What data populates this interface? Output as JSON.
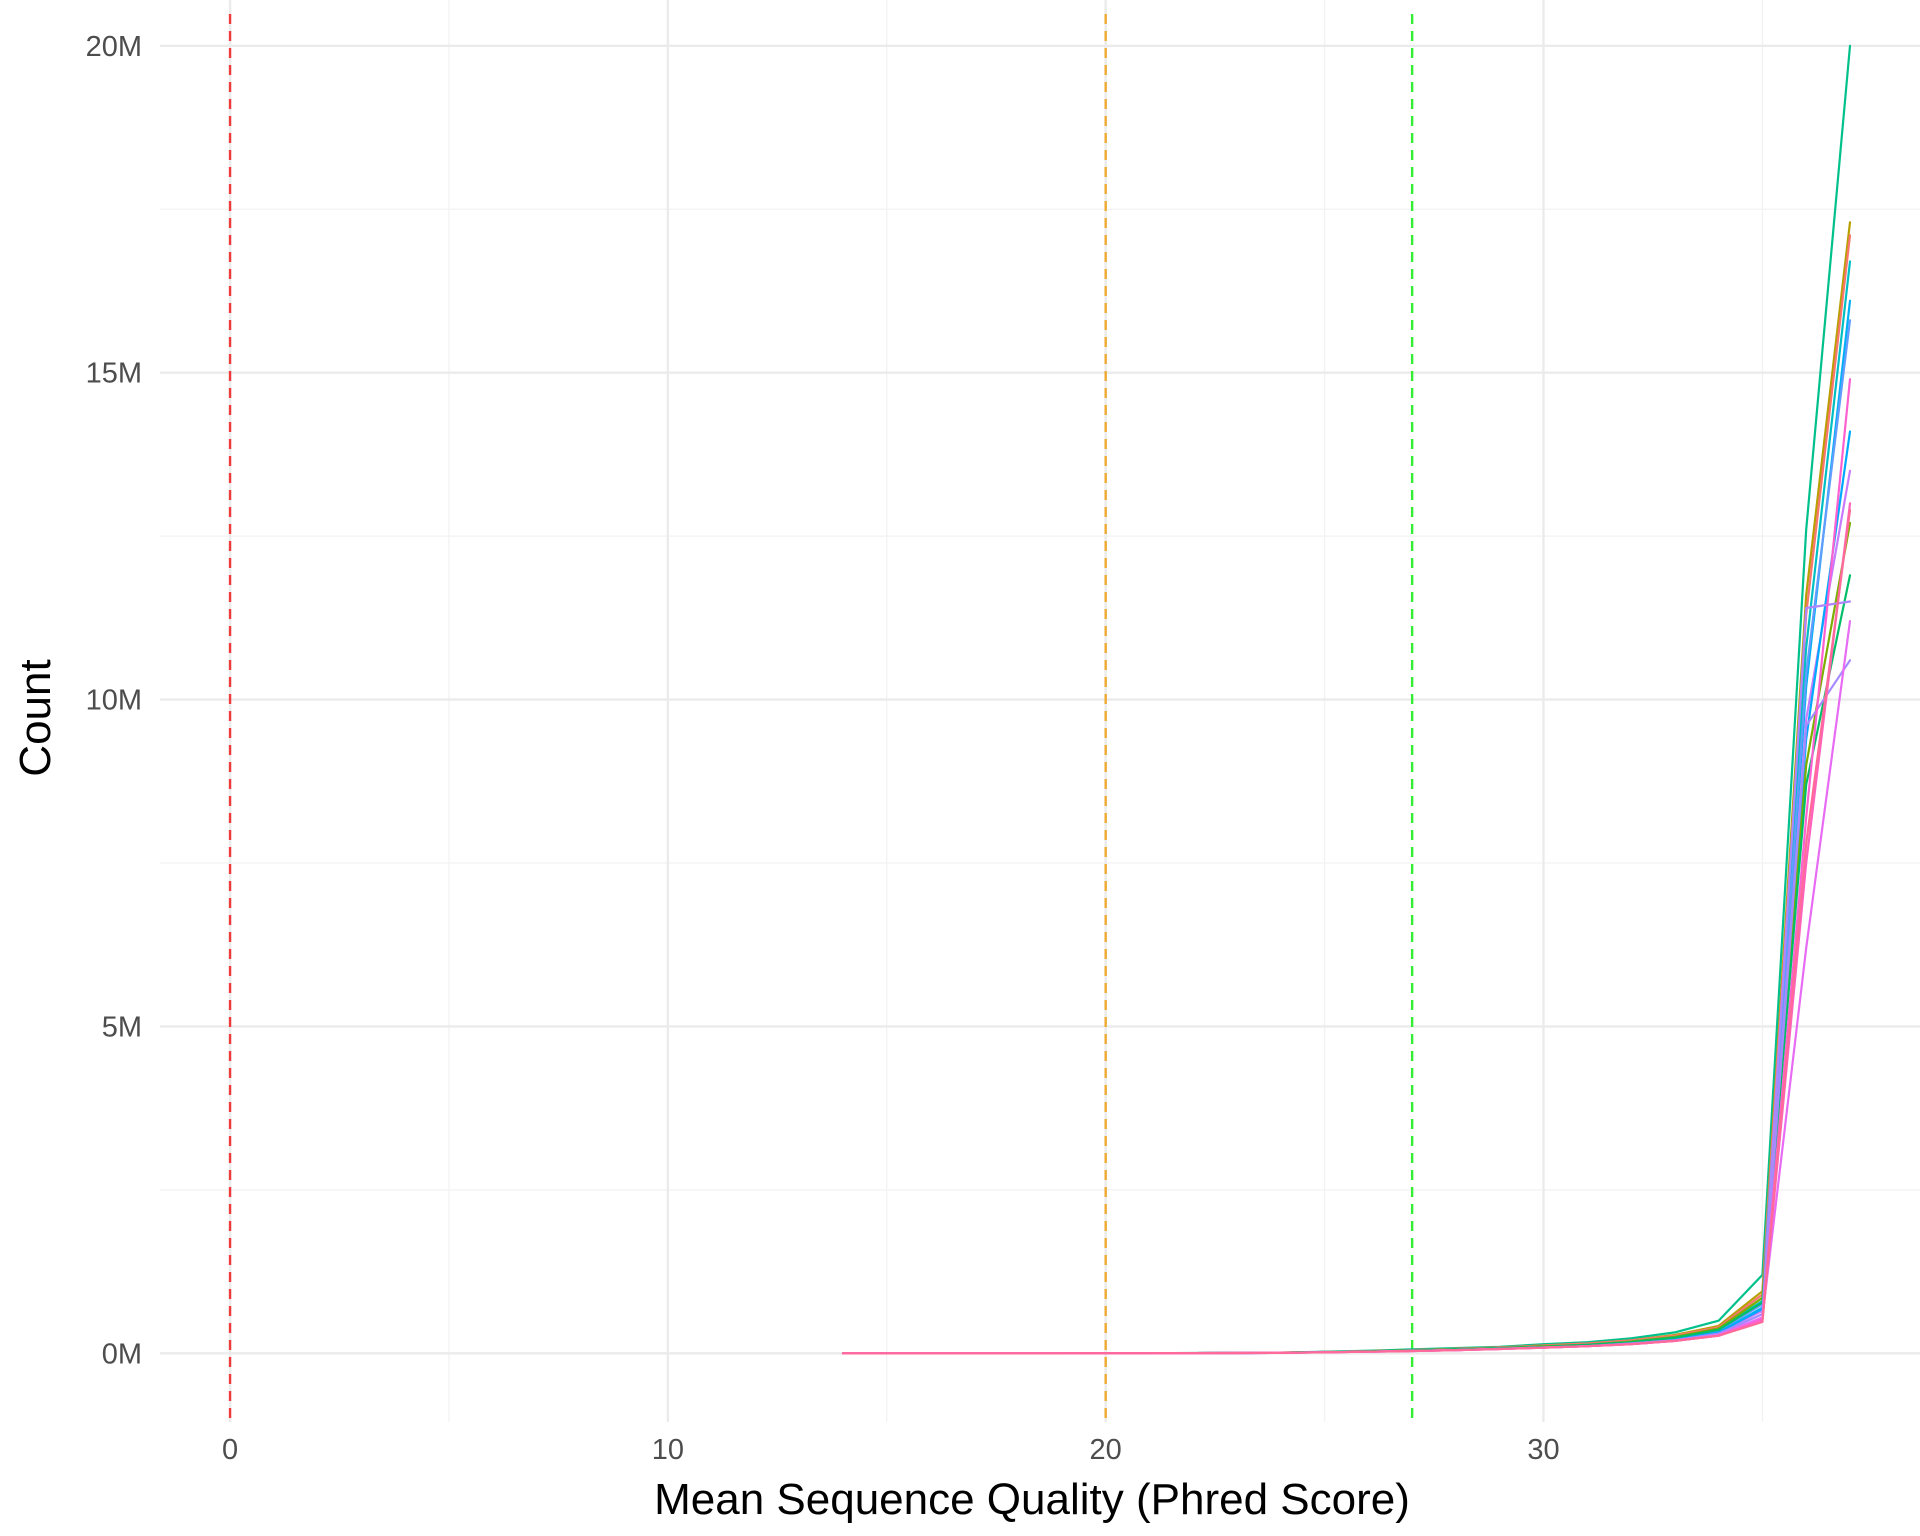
{
  "chart_data": {
    "type": "line",
    "title": "",
    "xlabel": "Mean Sequence Quality (Phred Score)",
    "ylabel": "Count",
    "xlim": [
      -1.6,
      38.6
    ],
    "ylim": [
      -1.05,
      20.7
    ],
    "x_ticks": [
      0,
      10,
      20,
      30
    ],
    "x_tick_labels": [
      "0",
      "10",
      "20",
      "30"
    ],
    "x_minor_ticks": [
      5,
      15,
      25,
      35
    ],
    "y_ticks": [
      0,
      5,
      10,
      15,
      20
    ],
    "y_tick_labels": [
      "0M",
      "5M",
      "10M",
      "15M",
      "20M"
    ],
    "y_minor_ticks": [
      2.5,
      7.5,
      12.5,
      17.5
    ],
    "y_unit": "M",
    "grid": true,
    "legend": "none",
    "reference_lines": [
      {
        "x": 0,
        "color": "#ee3b3b"
      },
      {
        "x": 20,
        "color": "#eeaa33"
      },
      {
        "x": 27,
        "color": "#33ee33"
      }
    ],
    "x": [
      14,
      15,
      16,
      17,
      18,
      19,
      20,
      21,
      22,
      23,
      24,
      25,
      26,
      27,
      28,
      29,
      30,
      31,
      32,
      33,
      34,
      35,
      36,
      37
    ],
    "series": [
      {
        "color": "#00b0f6",
        "values": [
          0,
          0,
          0,
          0,
          0,
          0,
          0.002,
          0.003,
          0.004,
          0.006,
          0.01,
          0.02,
          0.03,
          0.04,
          0.06,
          0.08,
          0.1,
          0.12,
          0.16,
          0.22,
          0.32,
          0.7,
          10.2,
          16.1
        ]
      },
      {
        "color": "#00c08b",
        "values": [
          0,
          0,
          0,
          0,
          0,
          0,
          0.002,
          0.003,
          0.005,
          0.007,
          0.012,
          0.025,
          0.04,
          0.06,
          0.08,
          0.1,
          0.14,
          0.17,
          0.23,
          0.32,
          0.5,
          1.2,
          12.6,
          20.0
        ]
      },
      {
        "color": "#b79f00",
        "values": [
          0,
          0,
          0,
          0,
          0,
          0,
          0.002,
          0.003,
          0.004,
          0.006,
          0.011,
          0.02,
          0.035,
          0.05,
          0.07,
          0.09,
          0.12,
          0.15,
          0.2,
          0.28,
          0.42,
          0.95,
          11.6,
          17.3
        ]
      },
      {
        "color": "#f8766d",
        "values": [
          0,
          0,
          0,
          0,
          0,
          0,
          0.002,
          0.003,
          0.004,
          0.006,
          0.011,
          0.02,
          0.033,
          0.05,
          0.07,
          0.09,
          0.12,
          0.15,
          0.2,
          0.27,
          0.4,
          0.9,
          11.3,
          17.1
        ]
      },
      {
        "color": "#00bfc4",
        "values": [
          0,
          0,
          0,
          0,
          0,
          0,
          0.002,
          0.003,
          0.004,
          0.006,
          0.01,
          0.02,
          0.03,
          0.045,
          0.06,
          0.08,
          0.11,
          0.13,
          0.18,
          0.25,
          0.37,
          0.8,
          10.8,
          16.7
        ]
      },
      {
        "color": "#619cff",
        "values": [
          0,
          0,
          0,
          0,
          0,
          0,
          0.002,
          0.003,
          0.004,
          0.006,
          0.01,
          0.02,
          0.03,
          0.045,
          0.06,
          0.08,
          0.1,
          0.13,
          0.17,
          0.24,
          0.35,
          0.75,
          10.4,
          15.8
        ]
      },
      {
        "color": "#c77cff",
        "values": [
          0,
          0,
          0,
          0,
          0,
          0,
          0.002,
          0.003,
          0.004,
          0.005,
          0.009,
          0.018,
          0.028,
          0.04,
          0.055,
          0.075,
          0.1,
          0.12,
          0.16,
          0.22,
          0.32,
          0.65,
          9.7,
          13.5
        ]
      },
      {
        "color": "#00a9ff",
        "values": [
          0,
          0,
          0,
          0,
          0,
          0,
          0.002,
          0.003,
          0.004,
          0.005,
          0.009,
          0.018,
          0.028,
          0.04,
          0.055,
          0.075,
          0.1,
          0.12,
          0.16,
          0.22,
          0.32,
          0.68,
          9.4,
          14.1
        ]
      },
      {
        "color": "#7cae00",
        "values": [
          0,
          0,
          0,
          0,
          0,
          0,
          0.002,
          0.003,
          0.004,
          0.006,
          0.01,
          0.02,
          0.03,
          0.045,
          0.06,
          0.08,
          0.11,
          0.13,
          0.18,
          0.25,
          0.38,
          0.85,
          9.0,
          12.7
        ]
      },
      {
        "color": "#00be67",
        "values": [
          0,
          0,
          0,
          0,
          0,
          0,
          0.002,
          0.003,
          0.004,
          0.006,
          0.01,
          0.02,
          0.03,
          0.045,
          0.06,
          0.08,
          0.1,
          0.13,
          0.17,
          0.24,
          0.36,
          0.78,
          8.7,
          11.9
        ]
      },
      {
        "color": "#ae87ff",
        "values": [
          0,
          0,
          0,
          0,
          0,
          0,
          0.002,
          0.003,
          0.004,
          0.005,
          0.009,
          0.017,
          0.026,
          0.038,
          0.05,
          0.07,
          0.09,
          0.11,
          0.15,
          0.2,
          0.3,
          0.6,
          11.4,
          11.5
        ]
      },
      {
        "color": "#a58aff",
        "values": [
          0,
          0,
          0,
          0,
          0,
          0,
          0.002,
          0.003,
          0.004,
          0.005,
          0.009,
          0.017,
          0.026,
          0.038,
          0.05,
          0.07,
          0.09,
          0.11,
          0.15,
          0.2,
          0.3,
          0.6,
          9.6,
          10.6
        ]
      },
      {
        "color": "#e76bf3",
        "values": [
          0,
          0,
          0,
          0,
          0,
          0,
          0.002,
          0.003,
          0.004,
          0.005,
          0.008,
          0.016,
          0.025,
          0.036,
          0.05,
          0.068,
          0.09,
          0.11,
          0.14,
          0.19,
          0.28,
          0.55,
          6.2,
          11.2
        ]
      },
      {
        "color": "#ff62bc",
        "values": [
          0,
          0,
          0,
          0,
          0,
          0,
          0.002,
          0.003,
          0.004,
          0.005,
          0.008,
          0.016,
          0.025,
          0.036,
          0.05,
          0.066,
          0.088,
          0.11,
          0.14,
          0.19,
          0.27,
          0.5,
          7.5,
          13.0
        ]
      },
      {
        "color": "#fd61d1",
        "values": [
          0,
          0,
          0,
          0,
          0,
          0,
          0.002,
          0.003,
          0.004,
          0.005,
          0.008,
          0.016,
          0.025,
          0.036,
          0.05,
          0.066,
          0.088,
          0.11,
          0.14,
          0.19,
          0.27,
          0.52,
          8.2,
          14.9
        ]
      },
      {
        "color": "#ff6a98",
        "values": [
          0,
          0,
          0,
          0,
          0,
          0,
          0.002,
          0.003,
          0.004,
          0.005,
          0.008,
          0.016,
          0.025,
          0.036,
          0.05,
          0.066,
          0.088,
          0.11,
          0.14,
          0.19,
          0.27,
          0.48,
          7.8,
          12.9
        ]
      }
    ]
  }
}
